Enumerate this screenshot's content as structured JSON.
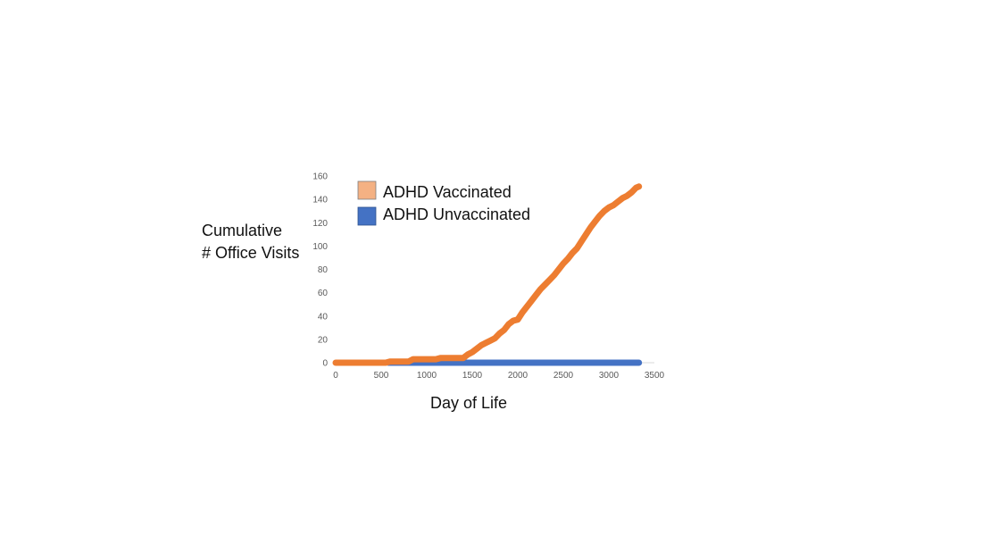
{
  "chart_data": {
    "type": "line",
    "title": "",
    "xlabel": "Day of Life",
    "ylabel": [
      "Cumulative",
      "# Office Visits"
    ],
    "xlim": [
      0,
      3500
    ],
    "ylim": [
      0,
      160
    ],
    "x_ticks": [
      0,
      500,
      1000,
      1500,
      2000,
      2500,
      3000,
      3500
    ],
    "y_ticks": [
      0,
      20,
      40,
      60,
      80,
      100,
      120,
      140,
      160
    ],
    "grid": false,
    "legend_position": "top-left",
    "series": [
      {
        "name": "ADHD Vaccinated",
        "color": "#ed7d31",
        "legend_color": "#f4b183",
        "x": [
          0,
          550,
          600,
          800,
          850,
          1100,
          1150,
          1400,
          1450,
          1500,
          1550,
          1600,
          1650,
          1700,
          1750,
          1800,
          1850,
          1900,
          1950,
          2000,
          2050,
          2100,
          2150,
          2200,
          2250,
          2300,
          2350,
          2400,
          2450,
          2500,
          2550,
          2600,
          2650,
          2700,
          2750,
          2800,
          2850,
          2900,
          2950,
          3000,
          3050,
          3100,
          3150,
          3200,
          3250,
          3300,
          3330
        ],
        "y": [
          0,
          0,
          1,
          1,
          3,
          3,
          4,
          4,
          7,
          9,
          12,
          15,
          17,
          19,
          21,
          25,
          28,
          33,
          36,
          37,
          43,
          48,
          53,
          58,
          63,
          67,
          71,
          75,
          80,
          85,
          89,
          94,
          98,
          104,
          110,
          116,
          121,
          126,
          130,
          133,
          135,
          138,
          141,
          143,
          146,
          150,
          151
        ]
      },
      {
        "name": "ADHD Unvaccinated",
        "color": "#4472c4",
        "legend_color": "#4472c4",
        "x": [
          580,
          3330
        ],
        "y": [
          0,
          0
        ]
      }
    ]
  }
}
